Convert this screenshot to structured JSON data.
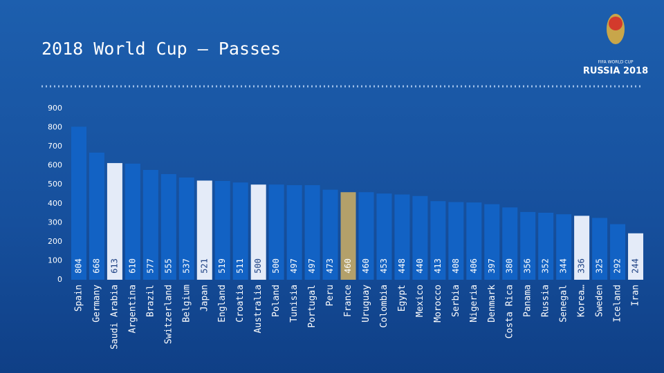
{
  "chart_data": {
    "type": "bar",
    "title": "2018 World Cup  –  Passes",
    "logo": {
      "line1": "FIFA WORLD CUP",
      "line2": "RUSSIA 2018"
    },
    "categories": [
      "Spain",
      "Germany",
      "Saudi Arabia",
      "Argentina",
      "Brazil",
      "Switzerland",
      "Belgium",
      "Japan",
      "England",
      "Croatia",
      "Australia",
      "Poland",
      "Tunisia",
      "Portugal",
      "Peru",
      "France",
      "Uruguay",
      "Colombia",
      "Egypt",
      "Mexico",
      "Morocco",
      "Serbia",
      "Nigeria",
      "Denmark",
      "Costa Rica",
      "Panama",
      "Russia",
      "Senegal",
      "Korea…",
      "Sweden",
      "Iceland",
      "Iran"
    ],
    "values": [
      804,
      668,
      613,
      610,
      577,
      555,
      537,
      521,
      519,
      511,
      500,
      500,
      497,
      497,
      473,
      460,
      460,
      453,
      448,
      440,
      413,
      408,
      406,
      397,
      380,
      356,
      352,
      344,
      336,
      325,
      292,
      244
    ],
    "colors": [
      "#1262c4",
      "#1262c4",
      "#e4ebf8",
      "#1262c4",
      "#1262c4",
      "#1262c4",
      "#1262c4",
      "#e4ebf8",
      "#1262c4",
      "#1262c4",
      "#e4ebf8",
      "#1262c4",
      "#1262c4",
      "#1262c4",
      "#1262c4",
      "#b3a06a",
      "#1262c4",
      "#1262c4",
      "#1262c4",
      "#1262c4",
      "#1262c4",
      "#1262c4",
      "#1262c4",
      "#1262c4",
      "#1262c4",
      "#1262c4",
      "#1262c4",
      "#1262c4",
      "#e4ebf8",
      "#1262c4",
      "#1262c4",
      "#e4ebf8"
    ],
    "ylim": [
      0,
      900
    ],
    "yticks": [
      0,
      100,
      200,
      300,
      400,
      500,
      600,
      700,
      800,
      900
    ]
  }
}
